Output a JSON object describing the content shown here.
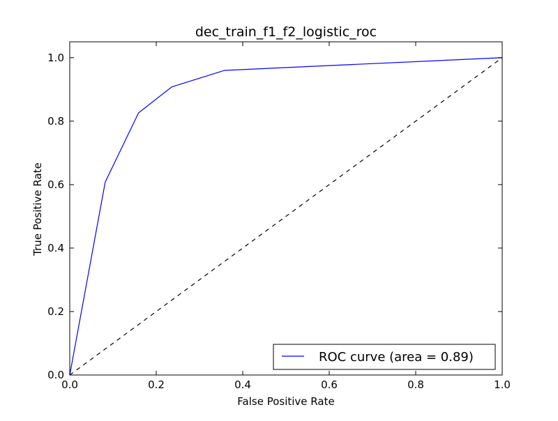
{
  "chart_data": {
    "type": "line",
    "title": "dec_train_f1_f2_logistic_roc",
    "xlabel": "False Positive Rate",
    "ylabel": "True Positive Rate",
    "xlim": [
      0.0,
      1.0
    ],
    "ylim": [
      0.0,
      1.05
    ],
    "x_ticks": [
      "0.0",
      "0.2",
      "0.4",
      "0.6",
      "0.8",
      "1.0"
    ],
    "y_ticks": [
      "0.0",
      "0.2",
      "0.4",
      "0.6",
      "0.8",
      "1.0"
    ],
    "grid": false,
    "legend_position": "lower-right",
    "series": [
      {
        "name": "ROC curve (area = 0.89)",
        "color": "#0000ff",
        "line_style": "solid",
        "x": [
          0.0,
          0.082,
          0.159,
          0.236,
          0.358,
          1.0
        ],
        "y": [
          0.0,
          0.608,
          0.826,
          0.908,
          0.96,
          1.0
        ]
      },
      {
        "color": "#000000",
        "line_style": "dashed",
        "x": [
          0.0,
          1.0
        ],
        "y": [
          0.0,
          1.0
        ]
      }
    ]
  }
}
